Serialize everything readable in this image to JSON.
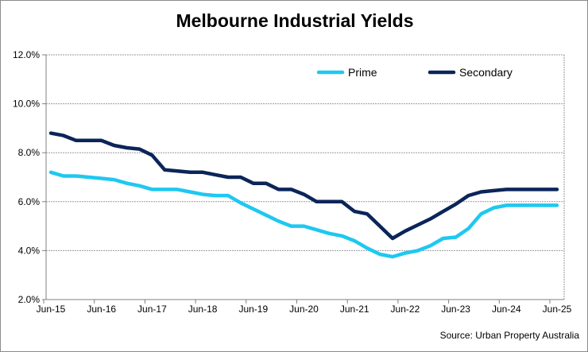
{
  "chart_data": {
    "type": "line",
    "title": "Melbourne Industrial Yields",
    "source": "Source: Urban Property Australia",
    "xlabel": "",
    "ylabel": "",
    "x_tick_labels": [
      "Jun-15",
      "Jun-16",
      "Jun-17",
      "Jun-18",
      "Jun-19",
      "Jun-20",
      "Jun-21",
      "Jun-22",
      "Jun-23",
      "Jun-24",
      "Jun-25"
    ],
    "x_frequency": "quarterly, Jun-15 to Jun-25",
    "y_tick_labels": [
      "2.0%",
      "4.0%",
      "6.0%",
      "8.0%",
      "10.0%",
      "12.0%"
    ],
    "ylim": [
      2,
      12
    ],
    "grid": "horizontal dashed",
    "legend_position": "top-right",
    "series": [
      {
        "name": "Prime",
        "color": "#1EC8F0",
        "values": [
          7.2,
          7.05,
          7.05,
          7.0,
          6.95,
          6.9,
          6.75,
          6.65,
          6.5,
          6.5,
          6.5,
          6.4,
          6.3,
          6.25,
          6.25,
          5.95,
          5.7,
          5.45,
          5.2,
          5.0,
          5.0,
          4.85,
          4.7,
          4.6,
          4.4,
          4.1,
          3.85,
          3.75,
          3.9,
          4.0,
          4.2,
          4.5,
          4.55,
          4.9,
          5.5,
          5.75,
          5.85,
          5.85,
          5.85,
          5.85,
          5.85
        ]
      },
      {
        "name": "Secondary",
        "color": "#0B2559",
        "values": [
          8.8,
          8.7,
          8.5,
          8.5,
          8.5,
          8.3,
          8.2,
          8.15,
          7.9,
          7.3,
          7.25,
          7.2,
          7.2,
          7.1,
          7.0,
          7.0,
          6.75,
          6.75,
          6.5,
          6.5,
          6.3,
          6.0,
          6.0,
          6.0,
          5.6,
          5.5,
          5.0,
          4.5,
          4.8,
          5.05,
          5.3,
          5.6,
          5.9,
          6.25,
          6.4,
          6.45,
          6.5,
          6.5,
          6.5,
          6.5,
          6.5
        ]
      }
    ]
  }
}
